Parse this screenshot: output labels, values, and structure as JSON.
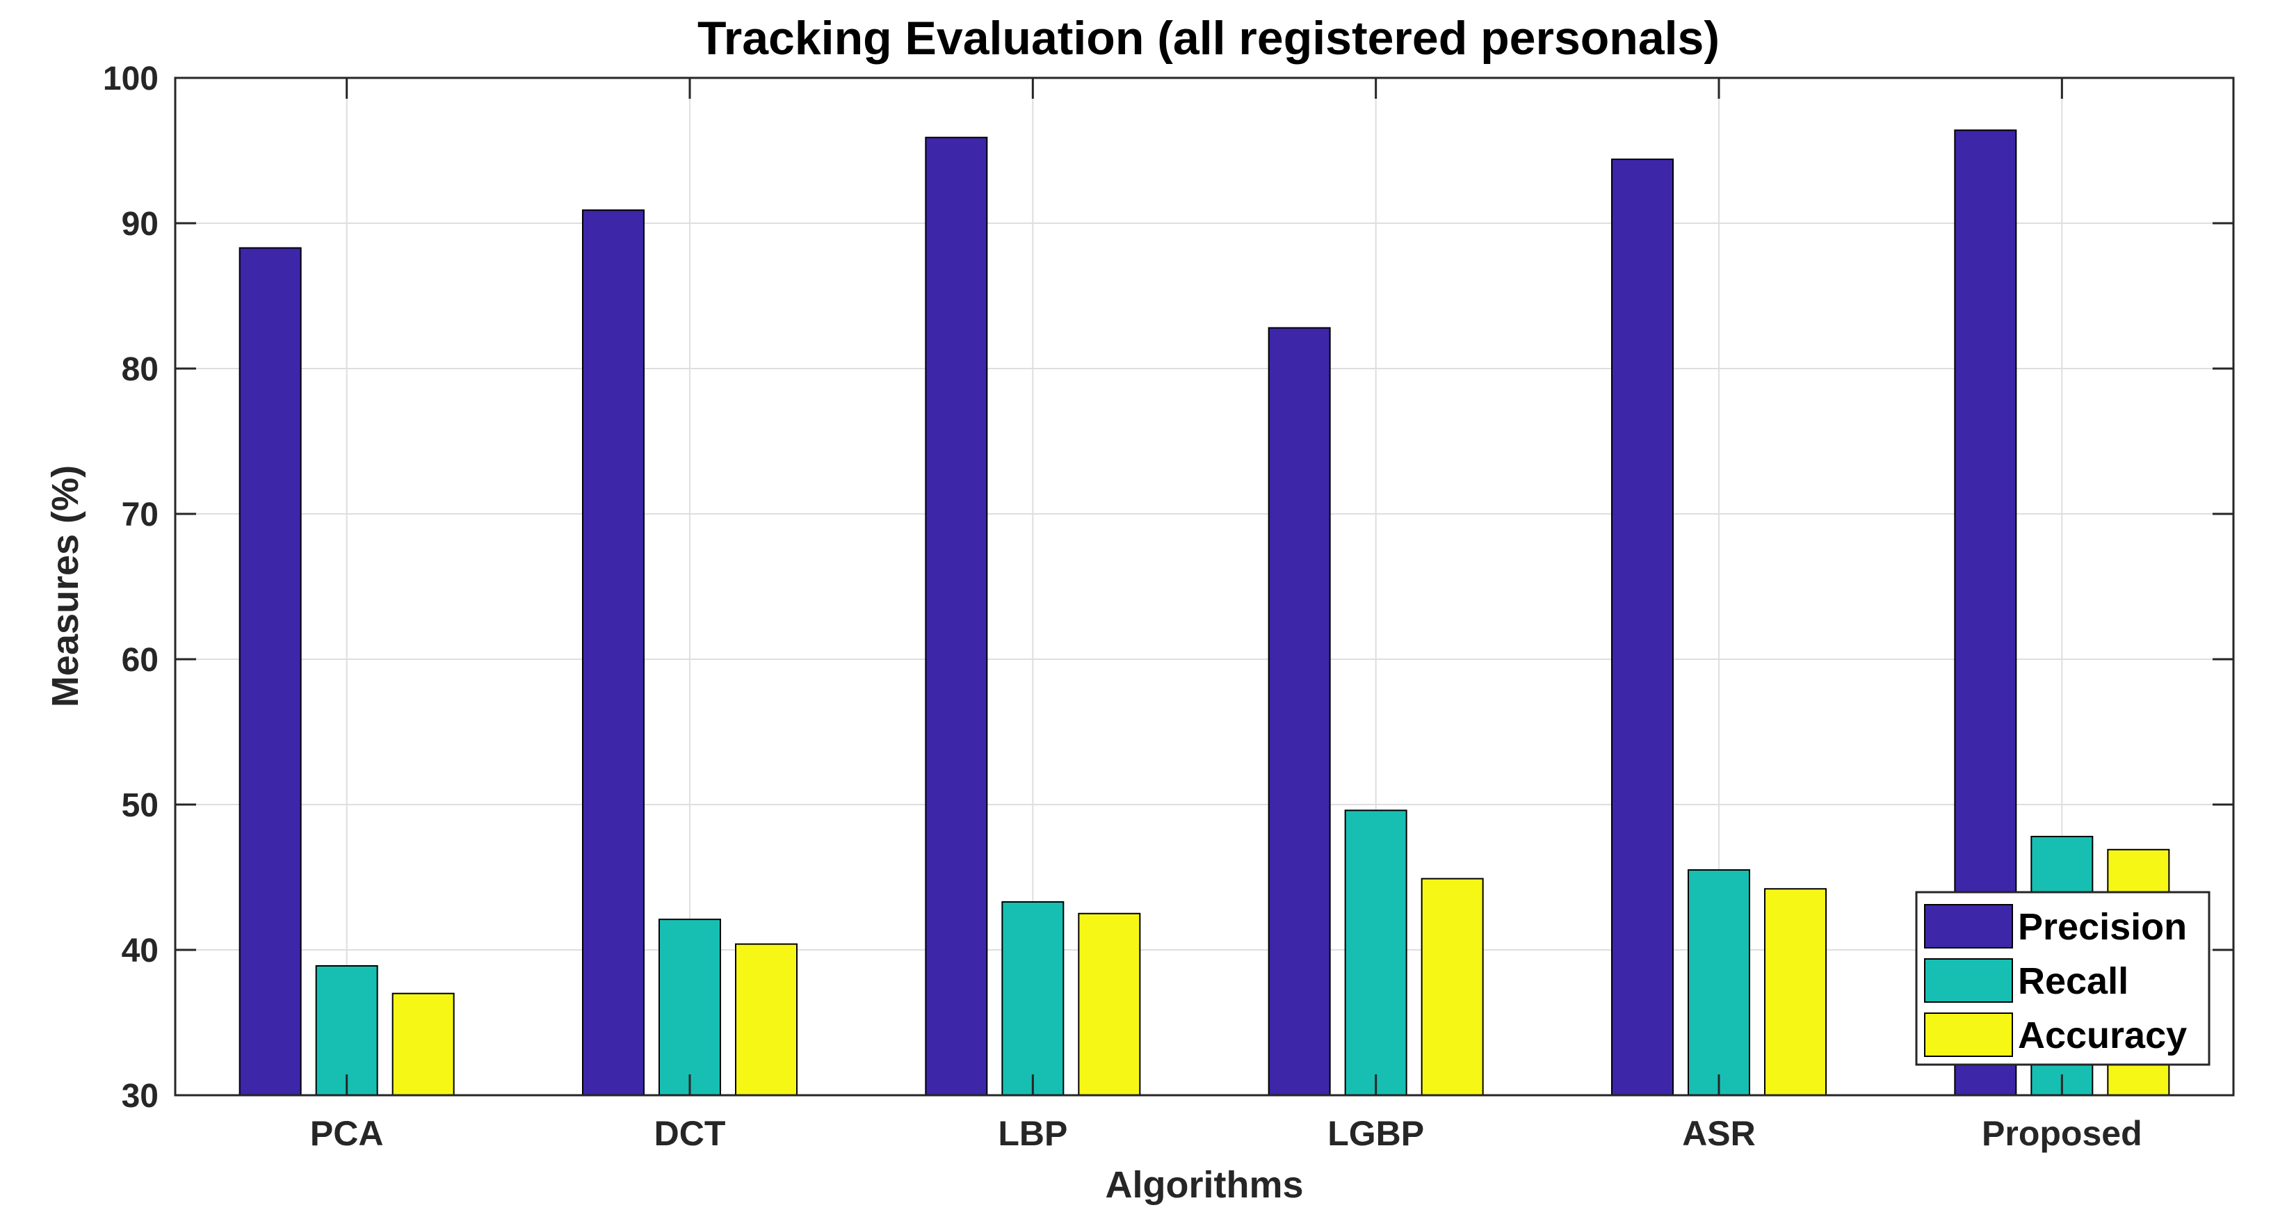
{
  "chart_data": {
    "type": "bar",
    "title": "Tracking Evaluation (all registered personals)",
    "xlabel": "Algorithms",
    "ylabel": "Measures (%)",
    "ylim": [
      30,
      100
    ],
    "yticks": [
      30,
      40,
      50,
      60,
      70,
      80,
      90,
      100
    ],
    "grid": true,
    "legend_position": "bottom-right",
    "categories": [
      "PCA",
      "DCT",
      "LBP",
      "LGBP",
      "ASR",
      "Proposed"
    ],
    "series": [
      {
        "name": "Precision",
        "color": "#3d26a8",
        "values": [
          88.3,
          90.9,
          95.9,
          82.8,
          94.4,
          96.4
        ]
      },
      {
        "name": "Recall",
        "color": "#17bfb3",
        "values": [
          38.9,
          42.1,
          43.3,
          49.6,
          45.5,
          47.8
        ]
      },
      {
        "name": "Accuracy",
        "color": "#f7f716",
        "values": [
          37.0,
          40.4,
          42.5,
          44.9,
          44.2,
          46.9
        ]
      }
    ]
  }
}
